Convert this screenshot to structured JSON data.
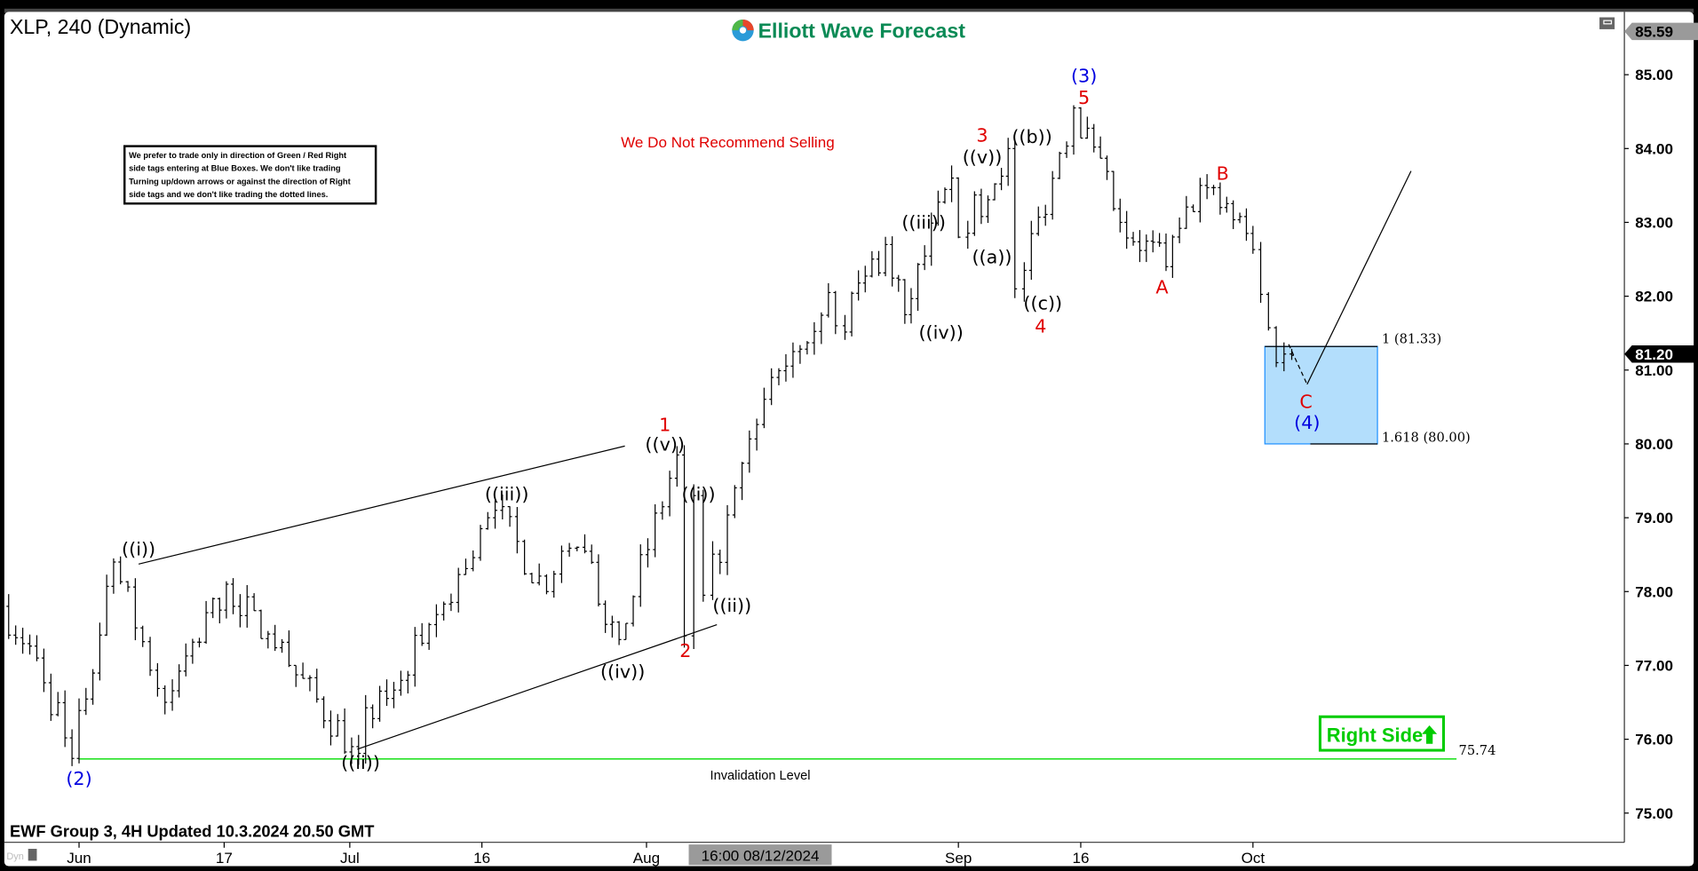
{
  "header": {
    "title": "XLP, 240 (Dynamic)",
    "logo_text": "Elliott Wave Forecast",
    "footer": "EWF Group 3, 4H Updated 10.3.2024 20.50 GMT",
    "dyn_label": "Dyn"
  },
  "note_box": {
    "lines": [
      "We prefer to trade only in direction of Green / Red Right",
      "side tags entering at Blue Boxes. We don't like trading",
      "Turning up/down arrows or against the direction of Right",
      "side tags and we don't like trading the dotted lines."
    ]
  },
  "annotations": {
    "recommendation": "We Do Not Recommend Selling",
    "invalidation_label": "Invalidation Level",
    "invalidation_value": "75.74",
    "box_upper": "1 (81.33)",
    "box_lower": "1.618 (80.00)",
    "right_side": "Right Side",
    "right_side_icon": "up-arrow-icon"
  },
  "wave_labels": {
    "blue": [
      "(2)",
      "(3)",
      "(4)"
    ],
    "red": [
      "1",
      "2",
      "3",
      "4",
      "5",
      "A",
      "B",
      "C"
    ],
    "black": [
      "((i))",
      "((ii))",
      "((iii))",
      "((iv))",
      "((v))",
      "((i))",
      "((ii))",
      "((iii))",
      "((iv))",
      "((v))",
      "((a))",
      "((b))",
      "((c))"
    ]
  },
  "colors": {
    "blue_box": "#b3defc",
    "invalidation_line": "#00dd00",
    "right_side": "#00cc00",
    "logo_green": "#0a8a55"
  },
  "chart_data": {
    "type": "ohlc",
    "symbol": "XLP",
    "timeframe": "240",
    "ylim": [
      74.6,
      85.8
    ],
    "y_ticks": [
      "85.00",
      "84.00",
      "83.00",
      "82.00",
      "81.00",
      "80.00",
      "79.00",
      "78.00",
      "77.00",
      "76.00",
      "75.00"
    ],
    "x_ticks": [
      "Jun",
      "17",
      "Jul",
      "16",
      "Aug",
      "Sep",
      "16",
      "Oct"
    ],
    "crosshair_date": "16:00 08/12/2024",
    "high_label": "85.59",
    "last_price": "81.20",
    "path": [
      {
        "date": "2024-05-24",
        "price": 77.8
      },
      {
        "date": "2024-05-29",
        "price": 77.1
      },
      {
        "date": "2024-06-03",
        "price": 75.74
      },
      {
        "date": "2024-06-07",
        "price": 78.4
      },
      {
        "date": "2024-06-12",
        "price": 76.5
      },
      {
        "date": "2024-06-18",
        "price": 78.1
      },
      {
        "date": "2024-06-25",
        "price": 77.0
      },
      {
        "date": "2024-07-02",
        "price": 75.9
      },
      {
        "date": "2024-07-10",
        "price": 77.3
      },
      {
        "date": "2024-07-18",
        "price": 79.1
      },
      {
        "date": "2024-07-23",
        "price": 78.0
      },
      {
        "date": "2024-07-26",
        "price": 78.6
      },
      {
        "date": "2024-07-30",
        "price": 77.35
      },
      {
        "date": "2024-08-05",
        "price": 79.85
      },
      {
        "date": "2024-08-06",
        "price": 77.4
      },
      {
        "date": "2024-08-07",
        "price": 79.3
      },
      {
        "date": "2024-08-08",
        "price": 77.95
      },
      {
        "date": "2024-08-15",
        "price": 80.9
      },
      {
        "date": "2024-08-21",
        "price": 82.05
      },
      {
        "date": "2024-08-22",
        "price": 81.6
      },
      {
        "date": "2024-08-27",
        "price": 82.7
      },
      {
        "date": "2024-08-29",
        "price": 81.75
      },
      {
        "date": "2024-09-03",
        "price": 83.6
      },
      {
        "date": "2024-09-04",
        "price": 82.8
      },
      {
        "date": "2024-09-09",
        "price": 84.0
      },
      {
        "date": "2024-09-10",
        "price": 82.1
      },
      {
        "date": "2024-09-16",
        "price": 84.55
      },
      {
        "date": "2024-09-20",
        "price": 83.0
      },
      {
        "date": "2024-09-24",
        "price": 82.4
      },
      {
        "date": "2024-09-27",
        "price": 83.5
      },
      {
        "date": "2024-10-01",
        "price": 82.85
      },
      {
        "date": "2024-10-03",
        "price": 81.1
      },
      {
        "date": "2024-10-04",
        "price": 81.2
      }
    ],
    "fib_levels": [
      {
        "ratio": 1,
        "price": 81.33
      },
      {
        "ratio": 1.618,
        "price": 80.0
      }
    ],
    "invalidation": 75.74
  }
}
